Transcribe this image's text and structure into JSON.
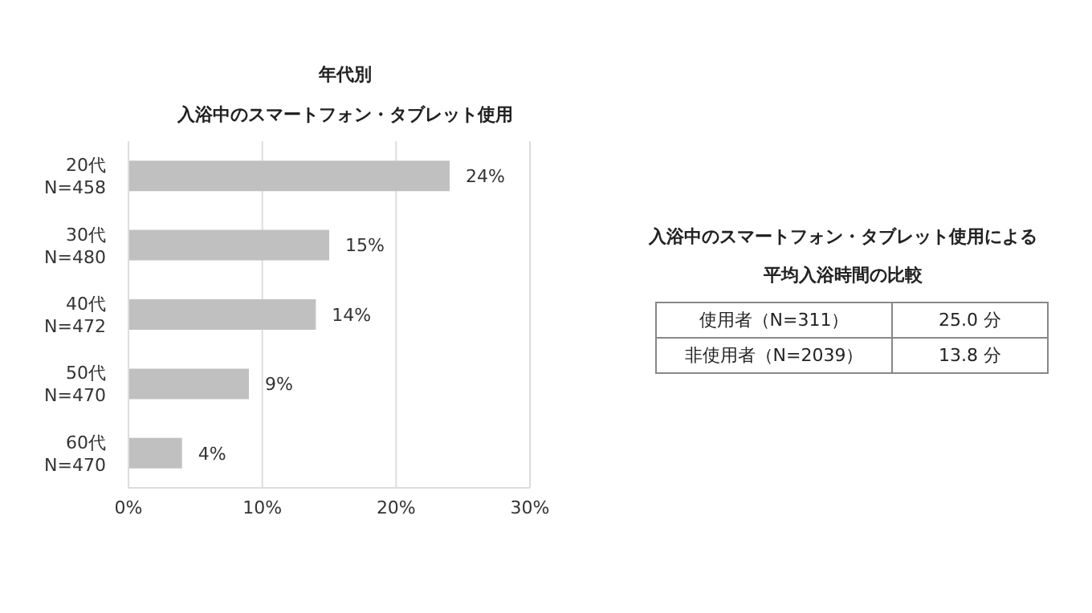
{
  "chart_data": [
    {
      "type": "bar",
      "orientation": "horizontal",
      "title": "年代別",
      "subtitle": "入浴中のスマートフォン・タブレット使用",
      "categories": [
        "20代\nN=458",
        "30代\nN=480",
        "40代\nN=472",
        "50代\nN=470",
        "60代\nN=470"
      ],
      "values": [
        24,
        15,
        14,
        9,
        4
      ],
      "value_labels": [
        "24%",
        "15%",
        "14%",
        "9%",
        "4%"
      ],
      "color": "#c0c0c0",
      "xlim": [
        0,
        30
      ],
      "xticks": [
        {
          "value": 0,
          "label": "0%"
        },
        {
          "value": 10,
          "label": "10%"
        },
        {
          "value": 20,
          "label": "20%"
        },
        {
          "value": 30,
          "label": "30%"
        }
      ],
      "grid": "x"
    },
    {
      "type": "other",
      "title": "入浴中のスマートフォン・タブレット使用による",
      "subtitle": "平均入浴時間の比較",
      "categories": [
        "使用者（N=311）",
        "非使用者（N=2039）"
      ],
      "value_labels": [
        "25.0 分",
        "13.8 分"
      ]
    }
  ]
}
